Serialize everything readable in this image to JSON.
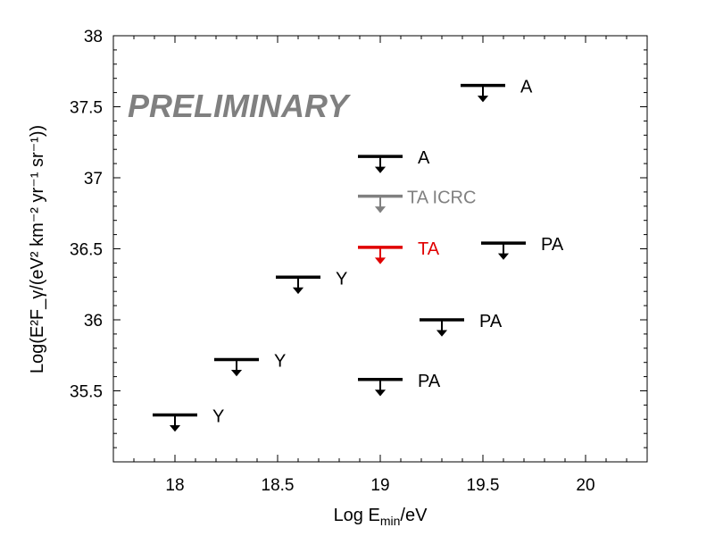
{
  "chart_data": {
    "type": "scatter",
    "subtype": "upper-limit markers",
    "annotation": "PRELIMINARY",
    "xlabel": "Log E_min/eV",
    "ylabel": "Log(E²F_γ/(eV² km⁻² yr⁻¹ sr⁻¹))",
    "xlim": [
      17.7,
      20.3
    ],
    "ylim": [
      35.0,
      38.0
    ],
    "x_ticks": [
      "18",
      "18.5",
      "19",
      "19.5",
      "20"
    ],
    "y_ticks": [
      "35.5",
      "36",
      "36.5",
      "37",
      "37.5",
      "38"
    ],
    "grid": false,
    "points": [
      {
        "x": 18.0,
        "y": 35.33,
        "label": "Y",
        "color": "#000000"
      },
      {
        "x": 18.3,
        "y": 35.72,
        "label": "Y",
        "color": "#000000"
      },
      {
        "x": 18.6,
        "y": 36.3,
        "label": "Y",
        "color": "#000000"
      },
      {
        "x": 19.0,
        "y": 35.58,
        "label": "PA",
        "color": "#000000"
      },
      {
        "x": 19.3,
        "y": 36.0,
        "label": "PA",
        "color": "#000000"
      },
      {
        "x": 19.6,
        "y": 36.54,
        "label": "PA",
        "color": "#000000"
      },
      {
        "x": 19.0,
        "y": 37.15,
        "label": "A",
        "color": "#000000"
      },
      {
        "x": 19.5,
        "y": 37.65,
        "label": "A",
        "color": "#000000"
      },
      {
        "x": 19.0,
        "y": 36.87,
        "label": "TA ICRC",
        "color": "#808080"
      },
      {
        "x": 19.0,
        "y": 36.51,
        "label": "TA",
        "color": "#e00000"
      }
    ]
  }
}
